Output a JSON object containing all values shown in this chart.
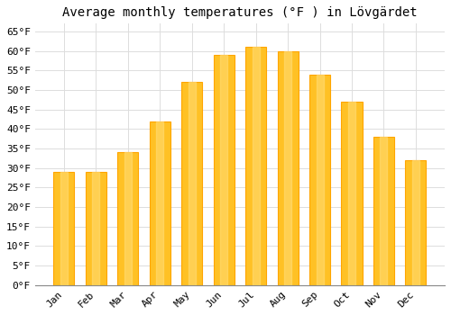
{
  "title": "Average monthly temperatures (°F ) in Lövgärdet",
  "months": [
    "Jan",
    "Feb",
    "Mar",
    "Apr",
    "May",
    "Jun",
    "Jul",
    "Aug",
    "Sep",
    "Oct",
    "Nov",
    "Dec"
  ],
  "values": [
    29,
    29,
    34,
    42,
    52,
    59,
    61,
    60,
    54,
    47,
    38,
    32
  ],
  "bar_color_face": "#FFC125",
  "bar_color_edge": "#FFA500",
  "background_color": "#FFFFFF",
  "grid_color": "#DDDDDD",
  "yticks": [
    0,
    5,
    10,
    15,
    20,
    25,
    30,
    35,
    40,
    45,
    50,
    55,
    60,
    65
  ],
  "ylim": [
    0,
    67
  ],
  "ylabel_suffix": "°F",
  "title_fontsize": 10,
  "tick_fontsize": 8,
  "font_family": "monospace"
}
